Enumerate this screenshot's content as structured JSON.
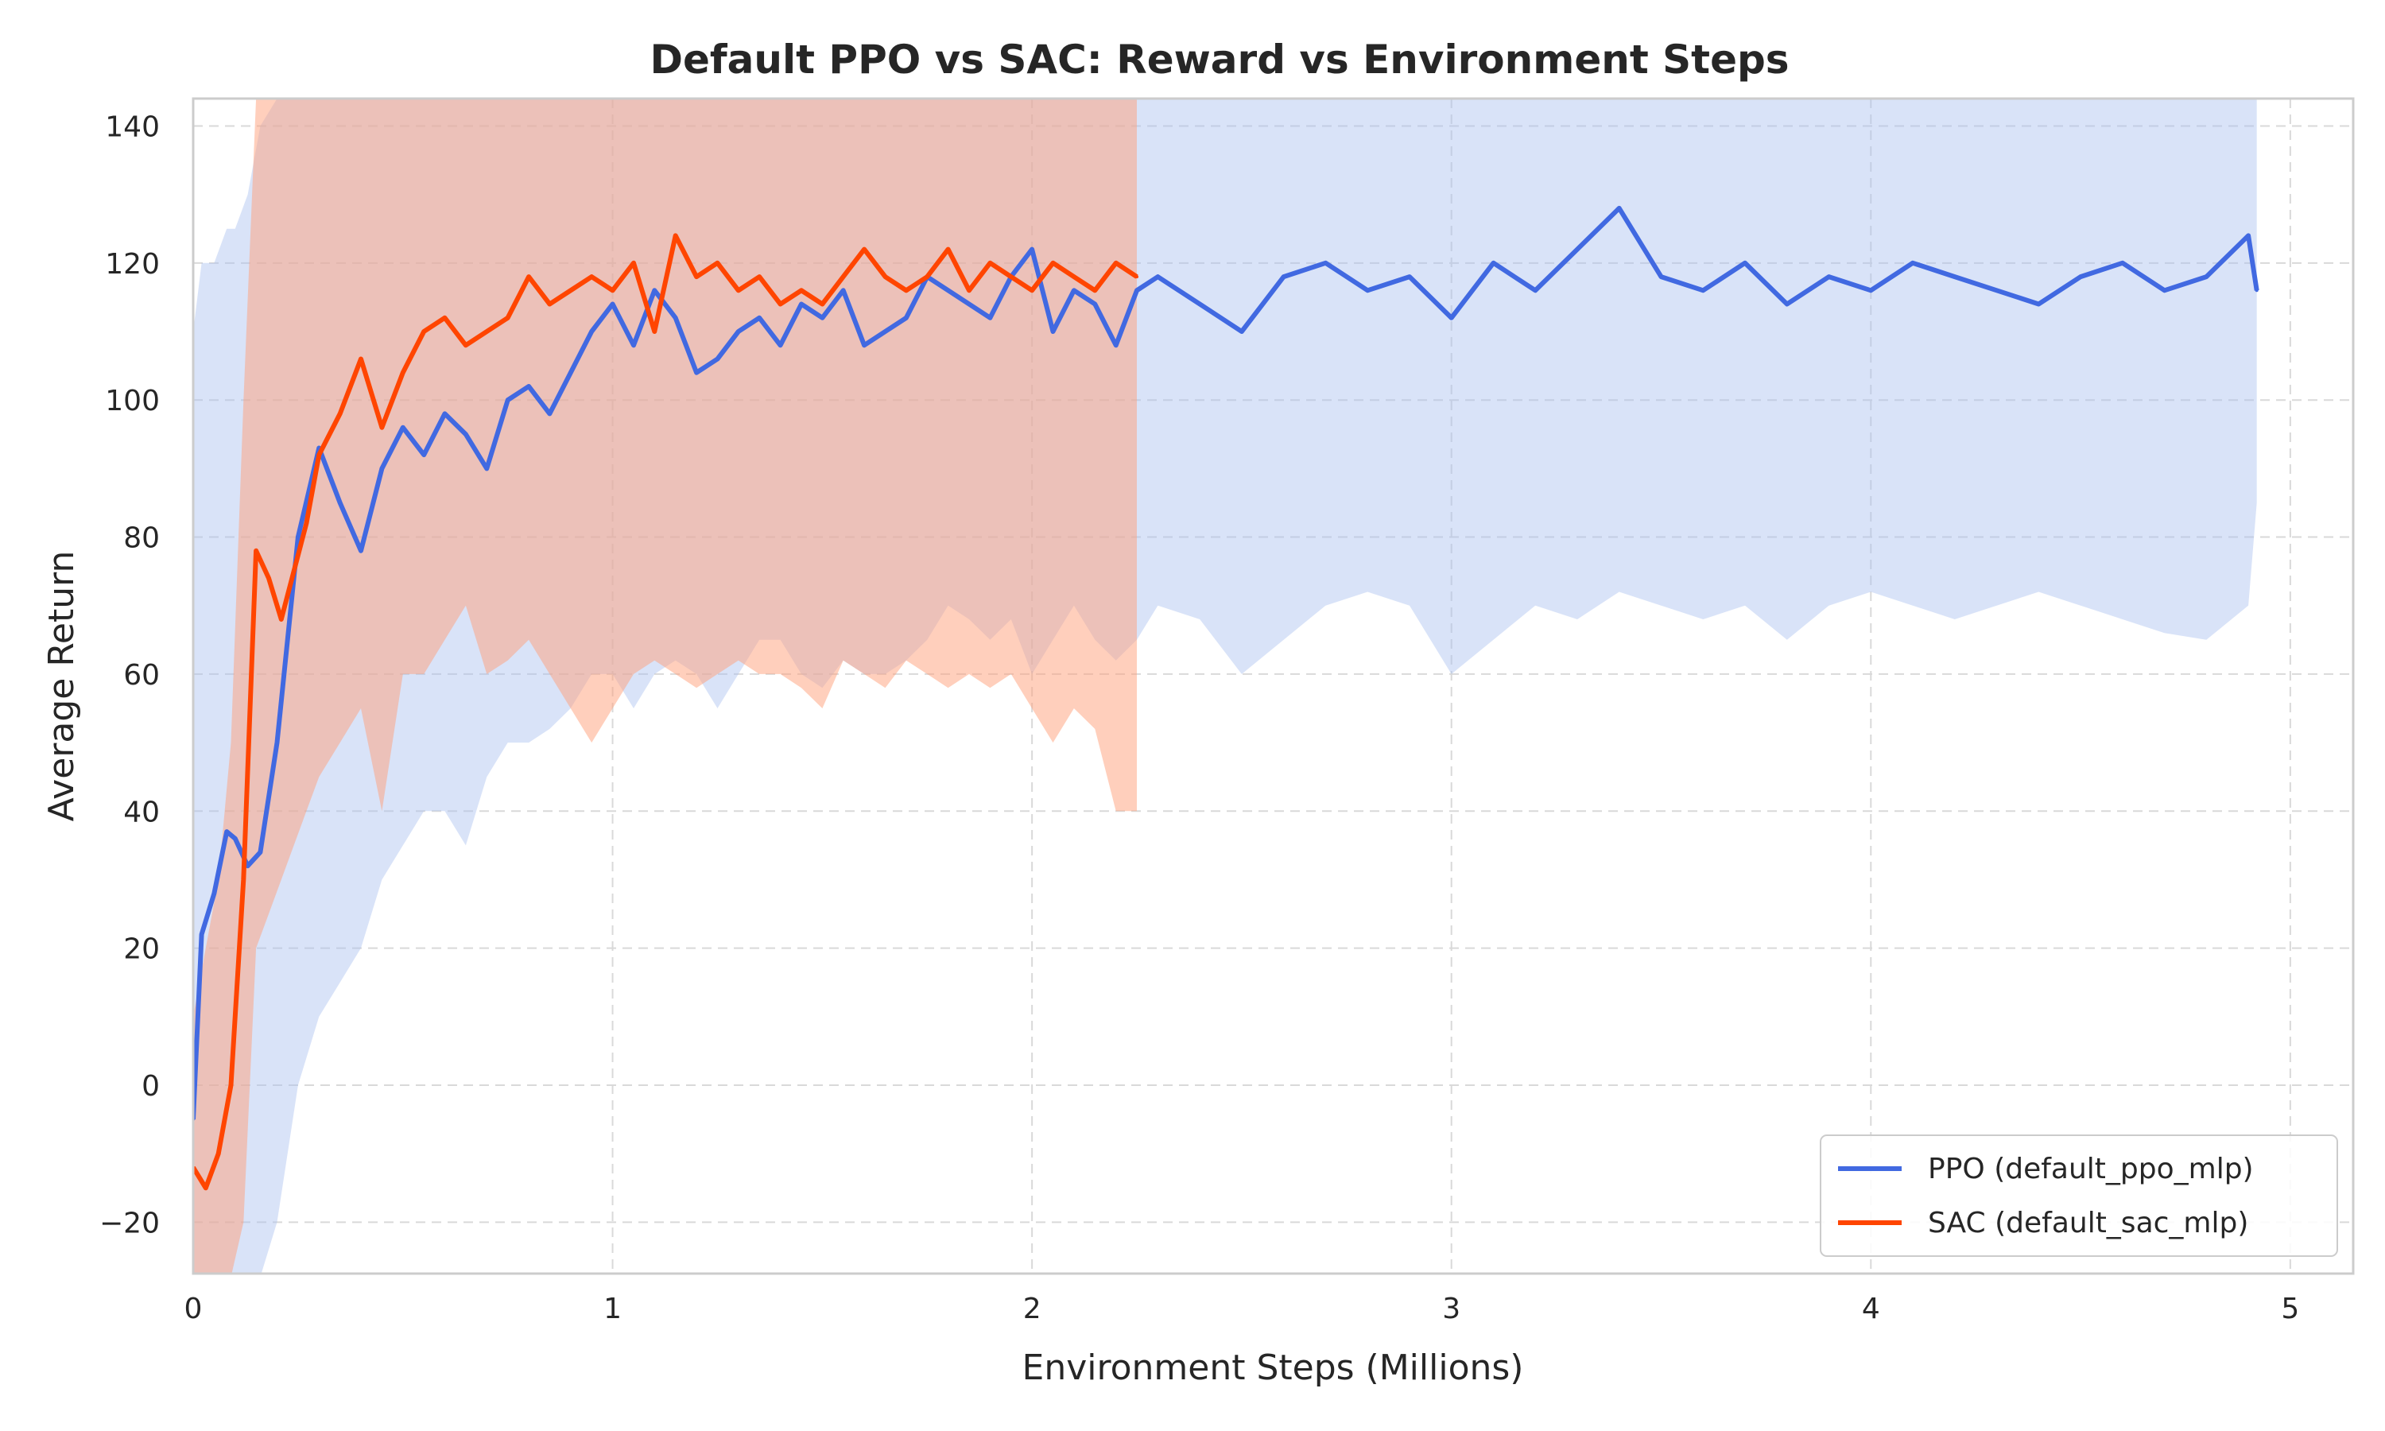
{
  "chart_data": {
    "type": "line",
    "title": "Default PPO vs SAC: Reward vs Environment Steps",
    "xlabel": "Environment Steps (Millions)",
    "ylabel": "Average Return",
    "xlim": [
      0,
      5.15
    ],
    "ylim": [
      -27.5,
      144
    ],
    "xticks": [
      0,
      1,
      2,
      3,
      4,
      5
    ],
    "yticks": [
      -20,
      0,
      20,
      40,
      60,
      80,
      100,
      120,
      140
    ],
    "grid": true,
    "legend_position": "bottom-right",
    "colors": {
      "ppo": "#4169e1",
      "ppo_band": "#aac0f0",
      "sac": "#ff4500",
      "sac_band": "#ffa07a"
    },
    "series": [
      {
        "name": "PPO (default_ppo_mlp)",
        "x": [
          0,
          0.02,
          0.05,
          0.08,
          0.1,
          0.13,
          0.16,
          0.2,
          0.25,
          0.3,
          0.35,
          0.4,
          0.45,
          0.5,
          0.55,
          0.6,
          0.65,
          0.7,
          0.75,
          0.8,
          0.85,
          0.9,
          0.95,
          1.0,
          1.05,
          1.1,
          1.15,
          1.2,
          1.25,
          1.3,
          1.35,
          1.4,
          1.45,
          1.5,
          1.55,
          1.6,
          1.65,
          1.7,
          1.75,
          1.8,
          1.85,
          1.9,
          1.95,
          2.0,
          2.05,
          2.1,
          2.15,
          2.2,
          2.25,
          2.3,
          2.4,
          2.5,
          2.6,
          2.7,
          2.8,
          2.9,
          3.0,
          3.1,
          3.2,
          3.3,
          3.4,
          3.5,
          3.6,
          3.7,
          3.8,
          3.9,
          4.0,
          4.1,
          4.2,
          4.3,
          4.4,
          4.5,
          4.6,
          4.7,
          4.8,
          4.9,
          4.92
        ],
        "y": [
          -5,
          22,
          28,
          37,
          36,
          32,
          34,
          50,
          80,
          93,
          85,
          78,
          90,
          96,
          92,
          98,
          95,
          90,
          100,
          102,
          98,
          104,
          110,
          114,
          108,
          116,
          112,
          104,
          106,
          110,
          112,
          108,
          114,
          112,
          116,
          108,
          110,
          112,
          118,
          116,
          114,
          112,
          118,
          122,
          110,
          116,
          114,
          108,
          116,
          118,
          114,
          110,
          118,
          120,
          116,
          118,
          112,
          120,
          116,
          122,
          128,
          118,
          116,
          120,
          114,
          118,
          116,
          120,
          118,
          116,
          114,
          118,
          120,
          116,
          118,
          124,
          116
        ],
        "band_lower": [
          -30,
          -28,
          -28,
          -28,
          -28,
          -28,
          -28,
          -20,
          0,
          10,
          15,
          20,
          30,
          35,
          40,
          40,
          35,
          45,
          50,
          50,
          52,
          55,
          60,
          60,
          55,
          60,
          62,
          60,
          55,
          60,
          65,
          65,
          60,
          58,
          62,
          60,
          60,
          62,
          65,
          70,
          68,
          65,
          68,
          60,
          65,
          70,
          65,
          62,
          65,
          70,
          68,
          60,
          65,
          70,
          72,
          70,
          60,
          65,
          70,
          68,
          72,
          70,
          68,
          70,
          65,
          70,
          72,
          70,
          68,
          70,
          72,
          70,
          68,
          66,
          65,
          70,
          85
        ],
        "band_upper": [
          110,
          120,
          120,
          125,
          125,
          130,
          140,
          144,
          144,
          144,
          144,
          144,
          144,
          144,
          144,
          144,
          144,
          144,
          144,
          144,
          144,
          144,
          144,
          144,
          144,
          144,
          144,
          144,
          144,
          144,
          144,
          144,
          144,
          144,
          144,
          144,
          144,
          144,
          144,
          144,
          144,
          144,
          144,
          144,
          144,
          144,
          144,
          144,
          144,
          144,
          144,
          144,
          144,
          144,
          144,
          144,
          144,
          144,
          144,
          144,
          144,
          144,
          144,
          144,
          144,
          144,
          144,
          144,
          144,
          144,
          144,
          144,
          144,
          144,
          144,
          144,
          144
        ]
      },
      {
        "name": "SAC (default_sac_mlp)",
        "x": [
          0,
          0.03,
          0.06,
          0.09,
          0.12,
          0.15,
          0.18,
          0.21,
          0.24,
          0.27,
          0.3,
          0.35,
          0.4,
          0.45,
          0.5,
          0.55,
          0.6,
          0.65,
          0.7,
          0.75,
          0.8,
          0.85,
          0.9,
          0.95,
          1.0,
          1.05,
          1.1,
          1.15,
          1.2,
          1.25,
          1.3,
          1.35,
          1.4,
          1.45,
          1.5,
          1.55,
          1.6,
          1.65,
          1.7,
          1.75,
          1.8,
          1.85,
          1.9,
          1.95,
          2.0,
          2.05,
          2.1,
          2.15,
          2.2,
          2.25
        ],
        "y": [
          -12,
          -15,
          -10,
          0,
          30,
          78,
          74,
          68,
          75,
          82,
          92,
          98,
          106,
          96,
          104,
          110,
          112,
          108,
          110,
          112,
          118,
          114,
          116,
          118,
          116,
          120,
          110,
          124,
          118,
          120,
          116,
          118,
          114,
          116,
          114,
          118,
          122,
          118,
          116,
          118,
          122,
          116,
          120,
          118,
          116,
          120,
          118,
          116,
          120,
          118
        ],
        "band_lower": [
          -30,
          -30,
          -30,
          -28,
          -20,
          20,
          25,
          30,
          35,
          40,
          45,
          50,
          55,
          40,
          60,
          60,
          65,
          70,
          60,
          62,
          65,
          60,
          55,
          50,
          55,
          60,
          62,
          60,
          58,
          60,
          62,
          60,
          60,
          58,
          55,
          62,
          60,
          58,
          62,
          60,
          58,
          60,
          58,
          60,
          55,
          50,
          55,
          52,
          40,
          40
        ],
        "band_upper": [
          10,
          20,
          30,
          50,
          100,
          144,
          144,
          144,
          144,
          144,
          144,
          144,
          144,
          144,
          144,
          144,
          144,
          144,
          144,
          144,
          144,
          144,
          144,
          144,
          144,
          144,
          144,
          144,
          144,
          144,
          144,
          144,
          144,
          144,
          144,
          144,
          144,
          144,
          144,
          144,
          144,
          144,
          144,
          144,
          144,
          144,
          144,
          144,
          144,
          144
        ]
      }
    ]
  }
}
